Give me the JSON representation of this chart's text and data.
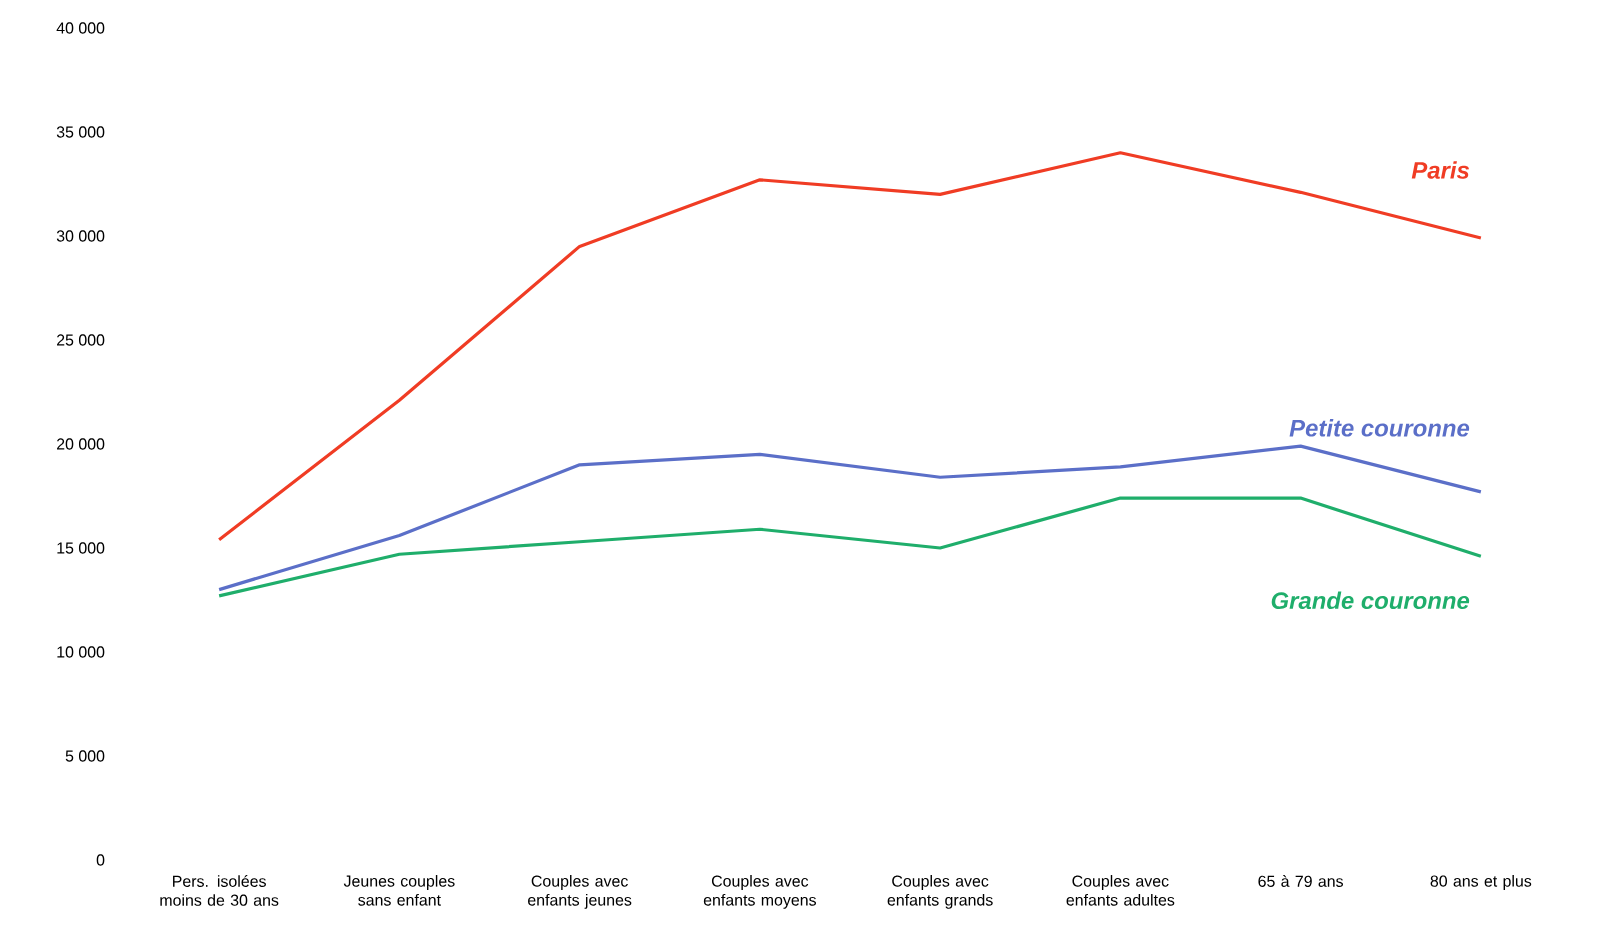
{
  "chart_data": {
    "type": "line",
    "categories": [
      "Pers. isolées moins de 30 ans",
      "Jeunes couples sans enfant",
      "Couples avec enfants jeunes",
      "Couples avec enfants moyens",
      "Couples avec enfants grands",
      "Couples avec enfants adultes",
      "65 à 79 ans",
      "80 ans et plus"
    ],
    "series": [
      {
        "name": "Paris",
        "color": "#f03c24",
        "values": [
          15400,
          22100,
          29500,
          32700,
          32000,
          34000,
          32100,
          29900
        ]
      },
      {
        "name": "Petite couronne",
        "color": "#5b6fc8",
        "values": [
          13000,
          15600,
          19000,
          19500,
          18400,
          18900,
          19900,
          17700
        ]
      },
      {
        "name": "Grande couronne",
        "color": "#1fae6b",
        "values": [
          12700,
          14700,
          15300,
          15900,
          15000,
          17400,
          17400,
          14600
        ]
      }
    ],
    "ylim": [
      0,
      40000
    ],
    "yticks": [
      0,
      {
        "value": 5000,
        "label": "5 000"
      },
      {
        "value": 10000,
        "label": "10 000"
      },
      {
        "value": 15000,
        "label": "15 000"
      },
      {
        "value": 20000,
        "label": "20 000"
      },
      {
        "value": 25000,
        "label": "25 000"
      },
      {
        "value": 30000,
        "label": "30 000"
      },
      {
        "value": 35000,
        "label": "35 000"
      },
      {
        "value": 40000,
        "label": "40 000"
      }
    ],
    "grid": false,
    "legend": false,
    "marker": "none",
    "line_style": "solid"
  }
}
